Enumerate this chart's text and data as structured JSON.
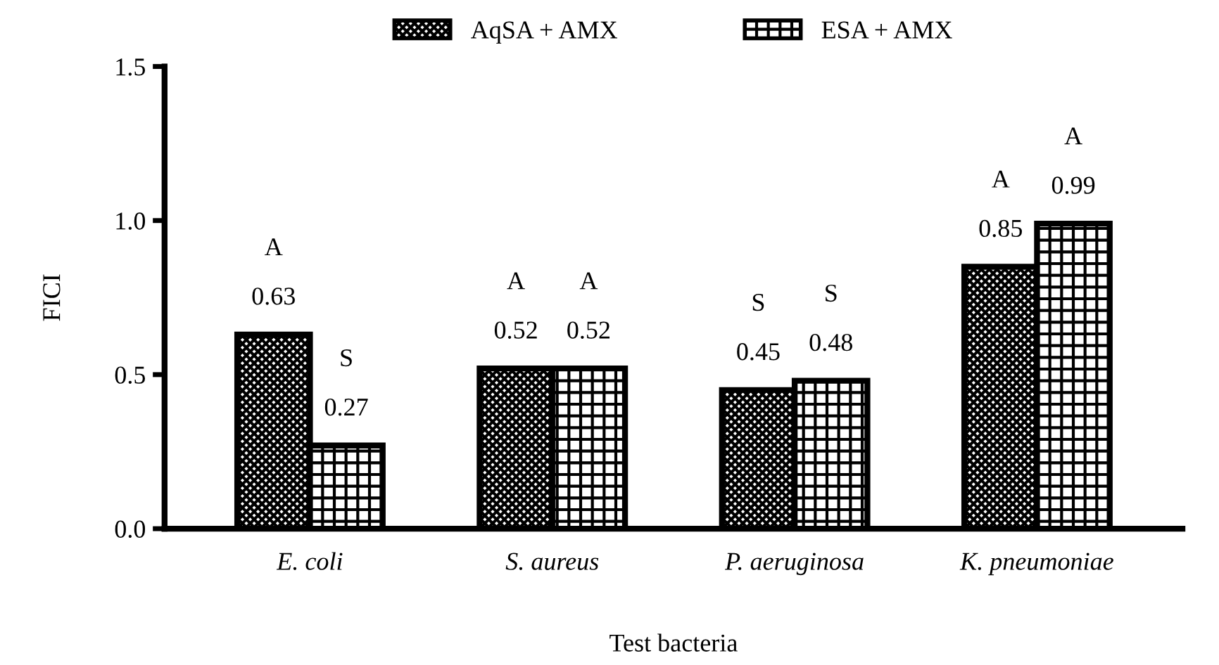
{
  "chart_data": {
    "type": "bar",
    "xlabel": "Test bacteria",
    "ylabel": "FICI",
    "categories": [
      "E. coli",
      "S. aureus",
      "P. aeruginosa",
      "K. pneumoniae"
    ],
    "series": [
      {
        "name": "AqSA + AMX",
        "color": "#000000",
        "values": [
          0.63,
          0.52,
          0.45,
          0.85
        ]
      },
      {
        "name": "ESA + AMX",
        "color": "#000000",
        "values": [
          0.27,
          0.52,
          0.48,
          0.99
        ]
      }
    ],
    "ylim": [
      0,
      1.5
    ],
    "yticks": [
      {
        "value": 0,
        "label": "0.0"
      },
      {
        "value": 0.5,
        "label": "0.5"
      },
      {
        "value": 1.0,
        "label": "1.0"
      },
      {
        "value": 1.5,
        "label": "1.5"
      }
    ],
    "data_labels": true,
    "legend": "top",
    "grid": false,
    "annotations": [
      "A",
      "S",
      "A",
      "A",
      "S",
      "S",
      "A",
      "A"
    ]
  }
}
